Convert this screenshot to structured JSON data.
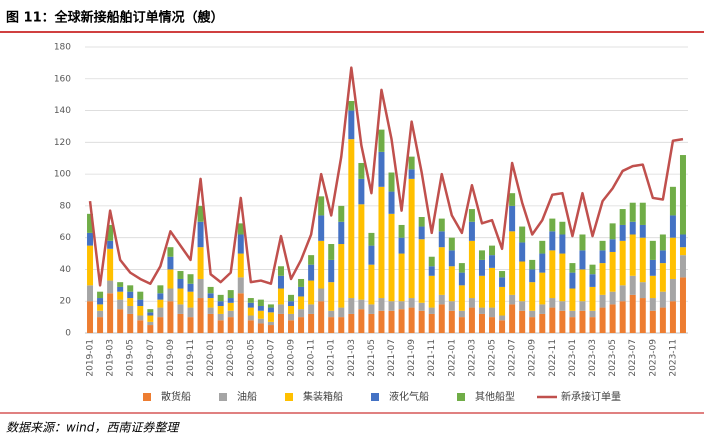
{
  "chart_data": {
    "type": "stacked_bar_line",
    "title": "图 11：全球新接船舶订单情况（艘）",
    "source": "数据来源：wind，西南证券整理",
    "categories": [
      "2019-01",
      null,
      "2019-03",
      null,
      "2019-05",
      null,
      "2019-07",
      null,
      "2019-09",
      null,
      "2019-11",
      null,
      "2020-01",
      null,
      "2020-03",
      null,
      "2020-05",
      null,
      "2020-07",
      null,
      "2020-09",
      null,
      "2020-11",
      null,
      "2021-01",
      null,
      "2021-03",
      null,
      "2021-05",
      null,
      "2021-07",
      null,
      "2021-09",
      null,
      "2021-11",
      null,
      "2022-01",
      null,
      "2022-03",
      null,
      "2022-05",
      null,
      "2022-07",
      null,
      "2022-09",
      null,
      "2022-11",
      null,
      "2023-01",
      null,
      "2023-03",
      null,
      "2023-05",
      null,
      "2023-07",
      null,
      "2023-09",
      null,
      "2023-11",
      null
    ],
    "ylim": [
      0,
      180
    ],
    "yticks": [
      0,
      20,
      40,
      60,
      80,
      100,
      120,
      140,
      160,
      180
    ],
    "grid": true,
    "legend": "bottom",
    "series": [
      {
        "name": "散货船",
        "color": "#ed7d31",
        "kind": "bar",
        "values": [
          20,
          10,
          25,
          15,
          12,
          8,
          5,
          10,
          20,
          12,
          10,
          22,
          12,
          8,
          10,
          25,
          8,
          6,
          5,
          12,
          8,
          10,
          12,
          20,
          10,
          10,
          12,
          15,
          12,
          14,
          14,
          15,
          16,
          14,
          12,
          18,
          14,
          10,
          16,
          12,
          10,
          8,
          18,
          14,
          10,
          12,
          16,
          14,
          10,
          14,
          10,
          16,
          18,
          20,
          24,
          22,
          14,
          16,
          20,
          35
        ]
      },
      {
        "name": "油船",
        "color": "#a5a5a5",
        "kind": "bar",
        "values": [
          10,
          4,
          8,
          6,
          5,
          3,
          2,
          6,
          8,
          6,
          6,
          12,
          4,
          4,
          4,
          10,
          3,
          3,
          2,
          6,
          4,
          5,
          6,
          8,
          4,
          6,
          10,
          6,
          6,
          8,
          6,
          5,
          6,
          5,
          4,
          6,
          6,
          4,
          6,
          4,
          6,
          3,
          6,
          6,
          4,
          6,
          6,
          6,
          4,
          6,
          4,
          8,
          8,
          10,
          12,
          10,
          8,
          10,
          14,
          14
        ]
      },
      {
        "name": "集装箱船",
        "color": "#ffc000",
        "kind": "bar",
        "values": [
          25,
          4,
          20,
          5,
          5,
          6,
          4,
          5,
          12,
          10,
          10,
          20,
          6,
          5,
          5,
          15,
          5,
          5,
          6,
          10,
          5,
          8,
          15,
          30,
          18,
          40,
          100,
          60,
          25,
          70,
          55,
          30,
          75,
          40,
          20,
          30,
          22,
          16,
          36,
          20,
          25,
          18,
          40,
          25,
          18,
          20,
          30,
          30,
          14,
          20,
          15,
          20,
          25,
          28,
          26,
          28,
          14,
          18,
          26,
          5
        ]
      },
      {
        "name": "液化气船",
        "color": "#4472c4",
        "kind": "bar",
        "values": [
          8,
          4,
          5,
          3,
          4,
          4,
          2,
          4,
          8,
          6,
          5,
          16,
          3,
          3,
          3,
          12,
          3,
          3,
          3,
          8,
          3,
          6,
          10,
          16,
          14,
          14,
          18,
          16,
          12,
          22,
          14,
          10,
          6,
          8,
          6,
          10,
          10,
          8,
          12,
          10,
          8,
          6,
          16,
          12,
          8,
          12,
          12,
          12,
          10,
          12,
          8,
          8,
          8,
          10,
          8,
          8,
          10,
          8,
          14,
          8
        ]
      },
      {
        "name": "其他船型",
        "color": "#70ad47",
        "kind": "bar",
        "values": [
          12,
          4,
          10,
          3,
          4,
          5,
          2,
          5,
          6,
          5,
          6,
          10,
          4,
          4,
          5,
          7,
          3,
          4,
          2,
          6,
          4,
          5,
          6,
          12,
          10,
          10,
          6,
          10,
          8,
          14,
          12,
          8,
          8,
          6,
          6,
          8,
          8,
          6,
          8,
          6,
          6,
          4,
          8,
          10,
          6,
          8,
          8,
          8,
          6,
          10,
          6,
          6,
          10,
          10,
          12,
          14,
          12,
          10,
          18,
          50
        ]
      },
      {
        "name": "新承接订单量",
        "color": "#c0504d",
        "kind": "line",
        "values": [
          83,
          30,
          77,
          46,
          38,
          34,
          31,
          42,
          64,
          55,
          46,
          97,
          37,
          32,
          38,
          85,
          32,
          33,
          31,
          61,
          34,
          46,
          62,
          100,
          74,
          111,
          167,
          118,
          88,
          153,
          122,
          77,
          133,
          101,
          63,
          100,
          74,
          63,
          93,
          69,
          71,
          53,
          107,
          82,
          62,
          71,
          87,
          88,
          61,
          88,
          61,
          83,
          91,
          102,
          105,
          106,
          85,
          84,
          121,
          122
        ]
      }
    ]
  }
}
